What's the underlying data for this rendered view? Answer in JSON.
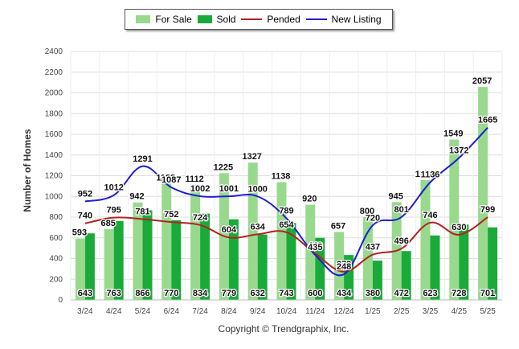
{
  "chart_data": {
    "type": "bar",
    "categories": [
      "3/24",
      "4/24",
      "5/24",
      "6/24",
      "7/24",
      "8/24",
      "9/24",
      "10/24",
      "11/24",
      "12/24",
      "1/25",
      "2/25",
      "3/25",
      "4/25",
      "5/25"
    ],
    "series": [
      {
        "name": "For Sale",
        "type": "bar",
        "color": "#98d98e",
        "values": [
          593,
          685,
          942,
          1123,
          1112,
          1225,
          1327,
          1138,
          920,
          657,
          800,
          945,
          1158,
          1549,
          2057
        ]
      },
      {
        "name": "Sold",
        "type": "bar",
        "color": "#1aaa3a",
        "values": [
          643,
          763,
          866,
          770,
          834,
          779,
          632,
          743,
          600,
          434,
          380,
          472,
          623,
          728,
          701
        ]
      },
      {
        "name": "Pended",
        "type": "line",
        "color": "#b22222",
        "values": [
          740,
          795,
          781,
          752,
          724,
          604,
          634,
          654,
          449,
          273,
          437,
          496,
          746,
          630,
          799
        ]
      },
      {
        "name": "New Listing",
        "type": "line",
        "color": "#1e1ed2",
        "values": [
          952,
          1012,
          1291,
          1087,
          1002,
          1001,
          1000,
          789,
          435,
          248,
          720,
          801,
          1136,
          1372,
          1665
        ]
      }
    ],
    "ylabel": "Number of Homes",
    "ylim": [
      0,
      2400
    ],
    "yticks": [
      0,
      200,
      400,
      600,
      800,
      1000,
      1200,
      1400,
      1600,
      1800,
      2000,
      2200,
      2400
    ],
    "grid": true,
    "legend_position": "top-center"
  },
  "footer": "Copyright © Trendgraphix, Inc."
}
